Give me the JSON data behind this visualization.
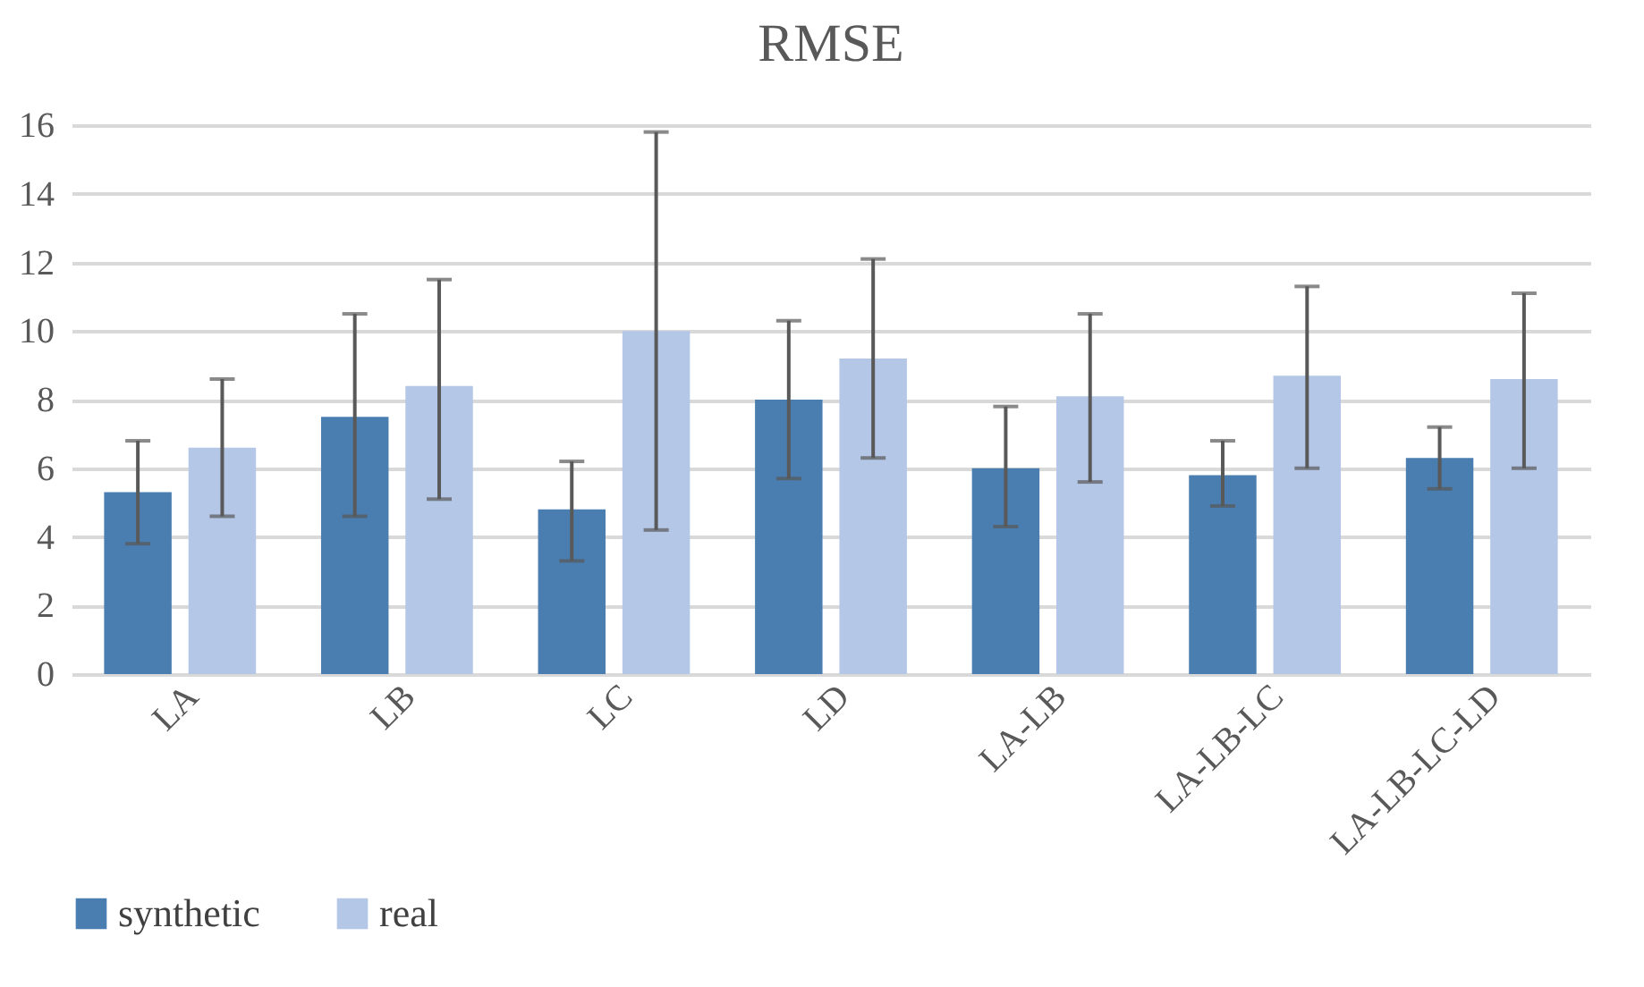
{
  "chart_data": {
    "type": "bar",
    "title": "RMSE",
    "categories": [
      "LA",
      "LB",
      "LC",
      "LD",
      "LA-LB",
      "LA-LB-LC",
      "LA-LB-LC-LD"
    ],
    "series": [
      {
        "name": "synthetic",
        "color": "#4a7eb0",
        "values": [
          5.3,
          7.5,
          4.8,
          8.0,
          6.0,
          5.8,
          6.3
        ],
        "errors": [
          [
            3.8,
            6.8
          ],
          [
            4.6,
            10.5
          ],
          [
            3.3,
            6.2
          ],
          [
            5.7,
            10.3
          ],
          [
            4.3,
            7.8
          ],
          [
            4.9,
            6.8
          ],
          [
            5.4,
            7.2
          ]
        ]
      },
      {
        "name": "real",
        "color": "#b4c7e7",
        "values": [
          6.6,
          8.4,
          10.0,
          9.2,
          8.1,
          8.7,
          8.6
        ],
        "errors": [
          [
            4.6,
            8.6
          ],
          [
            5.1,
            11.5
          ],
          [
            4.2,
            15.8
          ],
          [
            6.3,
            12.1
          ],
          [
            5.6,
            10.5
          ],
          [
            6.0,
            11.3
          ],
          [
            6.0,
            11.1
          ]
        ]
      }
    ],
    "ylim": [
      0,
      16
    ],
    "yticks": [
      0,
      2,
      4,
      6,
      8,
      10,
      12,
      14,
      16
    ],
    "grid": "y",
    "legend": "bottom"
  }
}
